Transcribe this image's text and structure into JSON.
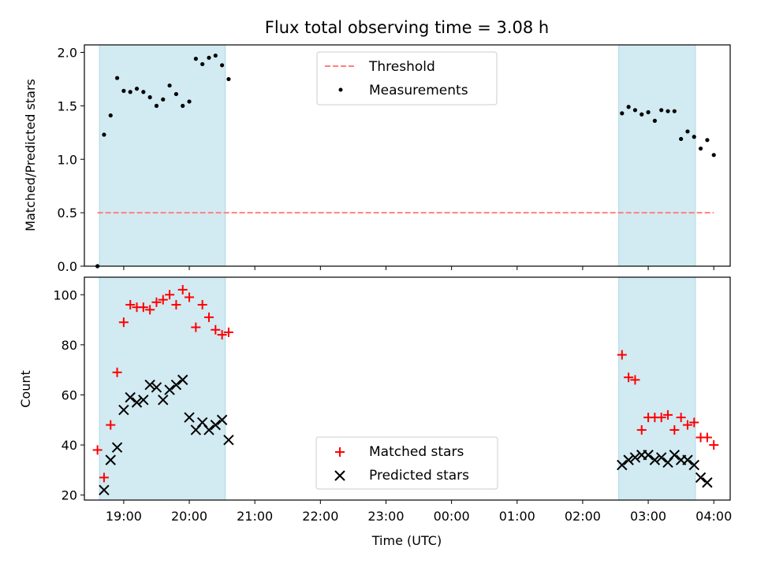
{
  "chart_data": [
    {
      "type": "scatter",
      "title": "Flux total observing time = 3.08 h",
      "ylabel": "Matched/Predicted stars",
      "xlabel": "",
      "ylim": [
        0,
        2.07
      ],
      "yticks": [
        "0.0",
        "0.5",
        "1.0",
        "1.5",
        "2.0"
      ],
      "xlim": [
        18.4,
        28.25
      ],
      "shaded_intervals": [
        [
          18.63,
          20.55
        ],
        [
          26.55,
          27.72
        ]
      ],
      "shade_color": "#add8e6",
      "legend_position": "top-center",
      "threshold": {
        "name": "Threshold",
        "y": 0.5,
        "x": [
          18.6,
          28.0
        ],
        "color": "#ff8080"
      },
      "series": [
        {
          "name": "Measurements",
          "color": "#000000",
          "x": [
            18.6,
            18.7,
            18.8,
            18.9,
            19.0,
            19.1,
            19.2,
            19.3,
            19.4,
            19.5,
            19.6,
            19.7,
            19.8,
            19.9,
            20.0,
            20.1,
            20.2,
            20.3,
            20.4,
            20.5,
            20.6,
            26.6,
            26.7,
            26.8,
            26.9,
            27.0,
            27.1,
            27.2,
            27.3,
            27.4,
            27.5,
            27.6,
            27.7,
            27.8,
            27.9,
            28.0
          ],
          "y": [
            0.0,
            1.23,
            1.41,
            1.76,
            1.64,
            1.63,
            1.66,
            1.63,
            1.58,
            1.5,
            1.56,
            1.69,
            1.61,
            1.5,
            1.54,
            1.94,
            1.89,
            1.95,
            1.97,
            1.88,
            1.75,
            1.43,
            1.49,
            1.46,
            1.42,
            1.44,
            1.36,
            1.46,
            1.45,
            1.45,
            1.19,
            1.26,
            1.21,
            1.1,
            1.18,
            1.04
          ]
        }
      ]
    },
    {
      "type": "scatter",
      "title": "",
      "ylabel": "Count",
      "xlabel": "Time (UTC)",
      "ylim": [
        18,
        107
      ],
      "yticks": [
        "20",
        "40",
        "60",
        "80",
        "100"
      ],
      "xlim": [
        18.4,
        28.25
      ],
      "xticks": [
        {
          "v": 19,
          "label": "19:00"
        },
        {
          "v": 20,
          "label": "20:00"
        },
        {
          "v": 21,
          "label": "21:00"
        },
        {
          "v": 22,
          "label": "22:00"
        },
        {
          "v": 23,
          "label": "23:00"
        },
        {
          "v": 24,
          "label": "00:00"
        },
        {
          "v": 25,
          "label": "01:00"
        },
        {
          "v": 26,
          "label": "02:00"
        },
        {
          "v": 27,
          "label": "03:00"
        },
        {
          "v": 28,
          "label": "04:00"
        }
      ],
      "shaded_intervals": [
        [
          18.63,
          20.55
        ],
        [
          26.55,
          27.72
        ]
      ],
      "shade_color": "#add8e6",
      "legend_position": "bottom-center",
      "series": [
        {
          "name": "Matched stars",
          "marker": "plus",
          "color": "#ff0000",
          "x": [
            18.6,
            18.7,
            18.8,
            18.9,
            19.0,
            19.1,
            19.2,
            19.3,
            19.4,
            19.5,
            19.6,
            19.7,
            19.8,
            19.9,
            20.0,
            20.1,
            20.2,
            20.3,
            20.4,
            20.5,
            20.6,
            26.6,
            26.7,
            26.8,
            26.9,
            27.0,
            27.1,
            27.2,
            27.3,
            27.4,
            27.5,
            27.6,
            27.7,
            27.8,
            27.9,
            28.0
          ],
          "y": [
            38,
            27,
            48,
            69,
            89,
            96,
            95,
            95,
            94,
            97,
            98,
            100,
            96,
            102,
            99,
            87,
            96,
            91,
            86,
            84,
            85,
            76,
            67,
            66,
            46,
            51,
            51,
            51,
            52,
            46,
            51,
            48,
            49,
            43,
            43,
            40
          ]
        },
        {
          "name": "Predicted stars",
          "marker": "x",
          "color": "#000000",
          "x": [
            18.7,
            18.8,
            18.9,
            19.0,
            19.1,
            19.2,
            19.3,
            19.4,
            19.5,
            19.6,
            19.7,
            19.8,
            19.9,
            20.0,
            20.1,
            20.2,
            20.3,
            20.4,
            20.5,
            20.6,
            26.6,
            26.7,
            26.8,
            26.9,
            27.0,
            27.1,
            27.2,
            27.3,
            27.4,
            27.5,
            27.6,
            27.7,
            27.8,
            27.9
          ],
          "y": [
            22,
            34,
            39,
            54,
            59,
            57,
            58,
            64,
            63,
            58,
            62,
            64,
            66,
            51,
            46,
            49,
            46,
            48,
            50,
            42,
            32,
            34,
            35,
            36,
            36,
            34,
            35,
            33,
            36,
            34,
            34,
            32,
            27,
            25
          ]
        }
      ]
    }
  ]
}
